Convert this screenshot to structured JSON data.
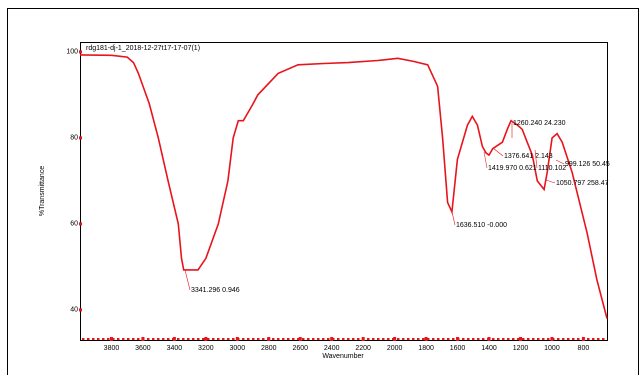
{
  "chart_data": {
    "type": "line",
    "title": "rdg181-dj-1_2018-12-27t17-17-07(1)",
    "x_label": "Wavenumber",
    "y_label": "%Transmittance",
    "xlim": [
      4000,
      650
    ],
    "ylim": [
      33,
      102.3
    ],
    "xticks": [
      3800,
      3600,
      3400,
      3200,
      3000,
      2800,
      2600,
      2400,
      2200,
      2000,
      1800,
      1600,
      1400,
      1200,
      1000,
      800
    ],
    "yticks": [
      100,
      80,
      60,
      40
    ],
    "x": [
      4000,
      3800,
      3700,
      3660,
      3629,
      3560,
      3502,
      3440,
      3375,
      3355,
      3341,
      3250,
      3200,
      3121,
      3060,
      3026,
      2994,
      2962,
      2930,
      2899,
      2870,
      2741,
      2614,
      2450,
      2297,
      2107,
      1980,
      1880,
      1790,
      1727,
      1695,
      1663,
      1636,
      1601,
      1537,
      1506,
      1474,
      1442,
      1419,
      1400,
      1376,
      1315,
      1284,
      1260,
      1220,
      1189,
      1157,
      1125,
      1093,
      1050,
      1030,
      999,
      967,
      935,
      872,
      777,
      714,
      650
    ],
    "series": [
      {
        "name": "rdg181-dj-1",
        "color": "#e8141c",
        "values": [
          99.3,
          99.2,
          98.8,
          97.5,
          95,
          88,
          80,
          70,
          60,
          52,
          49.3,
          49.3,
          52,
          60,
          70,
          80,
          84,
          84,
          86,
          88,
          90,
          95,
          97,
          97.3,
          97.5,
          98,
          98.5,
          97.8,
          97,
          92,
          80,
          65,
          62.8,
          75,
          83,
          85,
          83,
          78,
          76.5,
          76,
          77.5,
          79,
          82,
          84,
          83,
          82,
          79,
          76,
          70,
          68,
          72,
          80,
          81,
          79,
          72,
          58,
          47,
          38
        ]
      }
    ],
    "annotations": [
      "3341.296  0.946",
      "1636.510  -0.000",
      "1260.240  24.230",
      "1376.641  2.143",
      "1419.970  0.621",
      "1110.102",
      "999.126  50.45",
      "1050.797  258.47"
    ]
  }
}
